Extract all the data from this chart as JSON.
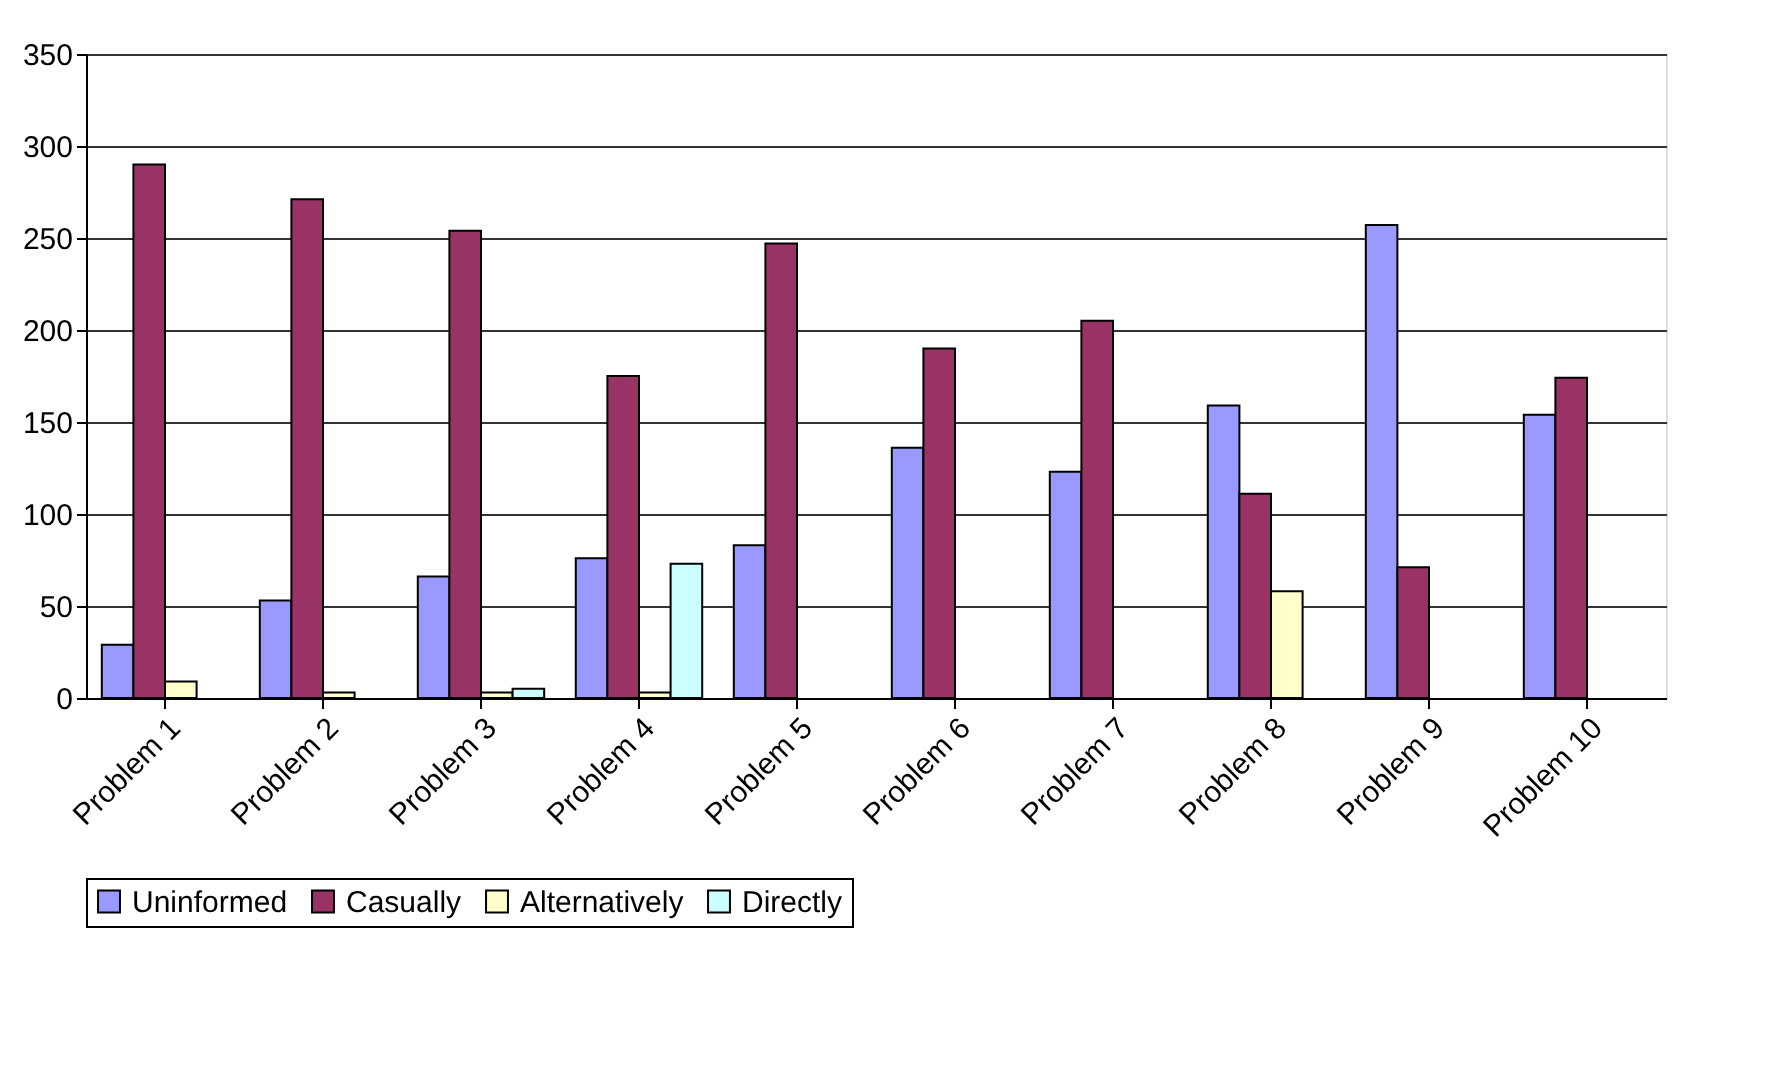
{
  "chart_data": {
    "type": "bar",
    "categories": [
      "Problem 1",
      "Problem 2",
      "Problem 3",
      "Problem 4",
      "Problem 5",
      "Problem 6",
      "Problem 7",
      "Problem 8",
      "Problem 9",
      "Problem 10"
    ],
    "series": [
      {
        "name": "Uninformed",
        "color": "#9999ff",
        "values": [
          29,
          53,
          66,
          76,
          83,
          136,
          123,
          159,
          257,
          154
        ]
      },
      {
        "name": "Casually",
        "color": "#993366",
        "values": [
          290,
          271,
          254,
          175,
          247,
          190,
          205,
          111,
          71,
          174
        ]
      },
      {
        "name": "Alternatively",
        "color": "#ffffcc",
        "values": [
          9,
          3,
          3,
          3,
          null,
          null,
          null,
          58,
          null,
          null
        ]
      },
      {
        "name": "Directly",
        "color": "#ccffff",
        "values": [
          null,
          null,
          5,
          73,
          null,
          null,
          null,
          null,
          null,
          null
        ]
      }
    ],
    "ylim": [
      0,
      350
    ],
    "yticks": [
      0,
      50,
      100,
      150,
      200,
      250,
      300,
      350
    ],
    "grid": "y",
    "legend": "bottom"
  }
}
